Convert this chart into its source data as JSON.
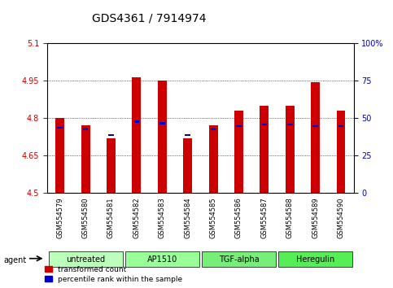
{
  "title": "GDS4361 / 7914974",
  "samples": [
    "GSM554579",
    "GSM554580",
    "GSM554581",
    "GSM554582",
    "GSM554583",
    "GSM554584",
    "GSM554585",
    "GSM554586",
    "GSM554587",
    "GSM554588",
    "GSM554589",
    "GSM554590"
  ],
  "red_values": [
    4.8,
    4.77,
    4.72,
    4.965,
    4.95,
    4.72,
    4.77,
    4.83,
    4.85,
    4.85,
    4.945,
    4.83
  ],
  "blue_values": [
    4.775,
    4.765,
    4.755,
    4.79,
    4.785,
    4.755,
    4.77,
    4.775,
    4.775,
    4.775,
    4.775,
    4.775
  ],
  "y_min": 4.5,
  "y_max": 5.1,
  "y_ticks_red": [
    4.5,
    4.65,
    4.8,
    4.95,
    5.1
  ],
  "y_ticks_blue": [
    0,
    25,
    50,
    75,
    100
  ],
  "blue_pct": [
    43,
    42,
    38,
    47,
    46,
    38,
    42,
    44,
    45,
    45,
    44,
    44
  ],
  "groups": [
    {
      "label": "untreated",
      "start": 0,
      "end": 3,
      "color": "#aaffaa"
    },
    {
      "label": "AP1510",
      "start": 3,
      "end": 6,
      "color": "#88ff88"
    },
    {
      "label": "TGF-alpha",
      "start": 6,
      "end": 9,
      "color": "#66ee66"
    },
    {
      "label": "Heregulin",
      "start": 9,
      "end": 12,
      "color": "#44ee44"
    }
  ],
  "bar_color_red": "#cc0000",
  "bar_color_blue": "#0000cc",
  "grid_color": "#000000",
  "tick_color_red": "#cc0000",
  "tick_color_blue": "#0000cc",
  "legend_red": "transformed count",
  "legend_blue": "percentile rank within the sample",
  "bar_width": 0.35
}
